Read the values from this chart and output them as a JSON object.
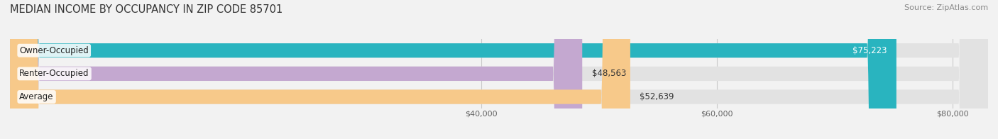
{
  "title": "MEDIAN INCOME BY OCCUPANCY IN ZIP CODE 85701",
  "source": "Source: ZipAtlas.com",
  "categories": [
    "Owner-Occupied",
    "Renter-Occupied",
    "Average"
  ],
  "values": [
    75223,
    48563,
    52639
  ],
  "bar_colors": [
    "#29b4bf",
    "#c4a8d0",
    "#f7c98a"
  ],
  "value_labels": [
    "$75,223",
    "$48,563",
    "$52,639"
  ],
  "xlim": [
    0,
    83000
  ],
  "xticks": [
    40000,
    60000,
    80000
  ],
  "xticklabels": [
    "$40,000",
    "$60,000",
    "$80,000"
  ],
  "background_color": "#f2f2f2",
  "bar_background_color": "#e2e2e2",
  "title_fontsize": 10.5,
  "source_fontsize": 8,
  "bar_height": 0.62,
  "label_fontsize": 8.5,
  "value_fontsize": 8.5,
  "tick_fontsize": 8
}
